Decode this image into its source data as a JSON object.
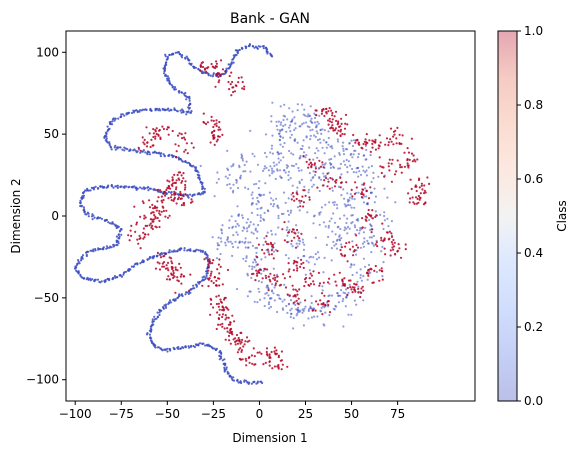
{
  "chart_data": {
    "type": "scatter",
    "title": "Bank - GAN",
    "xlabel": "Dimension 1",
    "ylabel": "Dimension 2",
    "xlim": [
      -105,
      117
    ],
    "ylim": [
      -113,
      113
    ],
    "xticks": [
      -100,
      -75,
      -50,
      -25,
      0,
      25,
      50,
      75
    ],
    "yticks": [
      100,
      50,
      0,
      -50,
      -100
    ],
    "grid": false,
    "colorbar": {
      "label": "Class",
      "colormap": "coolwarm",
      "alpha": 0.35,
      "range": [
        0.0,
        1.0
      ],
      "ticks": [
        "1.0",
        "0.8",
        "0.6",
        "0.4",
        "0.2",
        "0.0"
      ]
    },
    "colors": {
      "class_0": "#3b4cc0",
      "class_1": "#b40426"
    },
    "series": [
      {
        "name": "",
        "class": 0,
        "description_points": [
          [
            7,
            97
          ],
          [
            3,
            103
          ],
          [
            -5,
            104
          ],
          [
            -12,
            101
          ],
          [
            -15,
            93
          ],
          [
            -20,
            86
          ],
          [
            -27,
            86
          ],
          [
            -35,
            90
          ],
          [
            -40,
            97
          ],
          [
            -45,
            100
          ],
          [
            -50,
            98
          ],
          [
            -52,
            89
          ],
          [
            -48,
            80
          ],
          [
            -38,
            72
          ],
          [
            -38,
            63
          ],
          [
            -48,
            65
          ],
          [
            -60,
            65
          ],
          [
            -72,
            63
          ],
          [
            -80,
            58
          ],
          [
            -84,
            48
          ],
          [
            -80,
            42
          ],
          [
            -68,
            40
          ],
          [
            -55,
            38
          ],
          [
            -45,
            36
          ],
          [
            -35,
            30
          ],
          [
            -32,
            22
          ],
          [
            -30,
            14
          ],
          [
            -38,
            12
          ],
          [
            -50,
            14
          ],
          [
            -63,
            17
          ],
          [
            -75,
            18
          ],
          [
            -87,
            18
          ],
          [
            -95,
            15
          ],
          [
            -97,
            8
          ],
          [
            -95,
            2
          ],
          [
            -85,
            -2
          ],
          [
            -75,
            -8
          ],
          [
            -78,
            -18
          ],
          [
            -93,
            -22
          ],
          [
            -98,
            -28
          ],
          [
            -100,
            -32
          ],
          [
            -96,
            -38
          ],
          [
            -85,
            -40
          ],
          [
            -75,
            -36
          ],
          [
            -67,
            -30
          ],
          [
            -58,
            -25
          ],
          [
            -50,
            -22
          ],
          [
            -40,
            -20
          ],
          [
            -30,
            -22
          ],
          [
            -27,
            -28
          ],
          [
            -30,
            -38
          ],
          [
            -38,
            -46
          ],
          [
            -48,
            -52
          ],
          [
            -54,
            -58
          ],
          [
            -58,
            -65
          ],
          [
            -60,
            -73
          ],
          [
            -57,
            -80
          ],
          [
            -50,
            -82
          ],
          [
            -38,
            -80
          ],
          [
            -30,
            -78
          ],
          [
            -22,
            -82
          ],
          [
            -20,
            -88
          ],
          [
            -18,
            -95
          ],
          [
            -14,
            -100
          ],
          [
            -5,
            -102
          ],
          [
            2,
            -101
          ]
        ]
      },
      {
        "name": "",
        "class": 1,
        "description_points": [
          [
            -28,
            92
          ],
          [
            -22,
            87
          ],
          [
            -13,
            80
          ],
          [
            -26,
            56
          ],
          [
            -24,
            48
          ],
          [
            -60,
            47
          ],
          [
            -55,
            52
          ],
          [
            -42,
            45
          ],
          [
            -50,
            12
          ],
          [
            -46,
            18
          ],
          [
            -44,
            22
          ],
          [
            -42,
            10
          ],
          [
            -58,
            5
          ],
          [
            -55,
            0
          ],
          [
            -62,
            -5
          ],
          [
            -65,
            -12
          ],
          [
            -52,
            -28
          ],
          [
            -48,
            -33
          ],
          [
            -45,
            -38
          ],
          [
            -27,
            -30
          ],
          [
            -25,
            -40
          ],
          [
            -22,
            -52
          ],
          [
            -20,
            -60
          ],
          [
            -18,
            -68
          ],
          [
            -15,
            -73
          ],
          [
            -10,
            -80
          ],
          [
            -5,
            -88
          ],
          [
            5,
            -83
          ],
          [
            10,
            -90
          ],
          [
            35,
            65
          ],
          [
            40,
            55
          ],
          [
            45,
            55
          ],
          [
            55,
            45
          ],
          [
            65,
            45
          ],
          [
            75,
            48
          ],
          [
            82,
            35
          ],
          [
            88,
            18
          ],
          [
            85,
            10
          ],
          [
            70,
            30
          ],
          [
            68,
            -12
          ],
          [
            72,
            -20
          ],
          [
            62,
            -35
          ],
          [
            52,
            -45
          ],
          [
            45,
            -40
          ],
          [
            30,
            -40
          ],
          [
            20,
            -30
          ],
          [
            18,
            -10
          ],
          [
            22,
            10
          ],
          [
            30,
            30
          ],
          [
            40,
            20
          ],
          [
            55,
            15
          ],
          [
            60,
            0
          ],
          [
            50,
            -20
          ],
          [
            35,
            -55
          ],
          [
            20,
            -50
          ],
          [
            10,
            -40
          ],
          [
            0,
            -35
          ],
          [
            5,
            -20
          ]
        ]
      },
      {
        "name": "",
        "class": 0,
        "description_points": [
          [
            10,
            50
          ],
          [
            15,
            58
          ],
          [
            22,
            60
          ],
          [
            30,
            55
          ],
          [
            38,
            45
          ],
          [
            45,
            40
          ],
          [
            52,
            35
          ],
          [
            58,
            25
          ],
          [
            60,
            10
          ],
          [
            62,
            -5
          ],
          [
            60,
            -20
          ],
          [
            55,
            -35
          ],
          [
            48,
            -48
          ],
          [
            40,
            -55
          ],
          [
            30,
            -60
          ],
          [
            20,
            -58
          ],
          [
            12,
            -55
          ],
          [
            5,
            -48
          ],
          [
            0,
            -40
          ],
          [
            -2,
            -25
          ],
          [
            -5,
            -12
          ],
          [
            -3,
            0
          ],
          [
            0,
            12
          ],
          [
            5,
            25
          ],
          [
            8,
            38
          ],
          [
            25,
            40
          ],
          [
            30,
            20
          ],
          [
            35,
            0
          ],
          [
            40,
            -15
          ],
          [
            28,
            -25
          ],
          [
            15,
            -15
          ],
          [
            12,
            5
          ],
          [
            20,
            25
          ],
          [
            45,
            10
          ],
          [
            50,
            -5
          ],
          [
            38,
            30
          ],
          [
            -8,
            30
          ],
          [
            -15,
            20
          ],
          [
            -12,
            -8
          ],
          [
            -18,
            -15
          ]
        ]
      }
    ]
  }
}
